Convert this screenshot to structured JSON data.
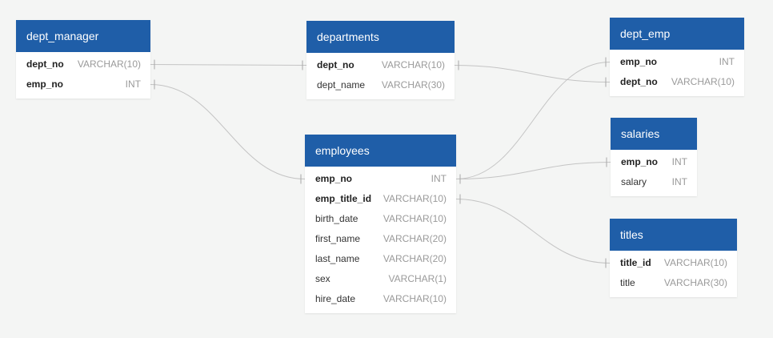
{
  "tables": [
    {
      "id": "dept_manager",
      "name": "dept_manager",
      "columns": [
        {
          "name": "dept_no",
          "type": "VARCHAR(10)",
          "key": true
        },
        {
          "name": "emp_no",
          "type": "INT",
          "key": true
        }
      ]
    },
    {
      "id": "departments",
      "name": "departments",
      "columns": [
        {
          "name": "dept_no",
          "type": "VARCHAR(10)",
          "key": true
        },
        {
          "name": "dept_name",
          "type": "VARCHAR(30)",
          "key": false
        }
      ]
    },
    {
      "id": "dept_emp",
      "name": "dept_emp",
      "columns": [
        {
          "name": "emp_no",
          "type": "INT",
          "key": true
        },
        {
          "name": "dept_no",
          "type": "VARCHAR(10)",
          "key": true
        }
      ]
    },
    {
      "id": "employees",
      "name": "employees",
      "columns": [
        {
          "name": "emp_no",
          "type": "INT",
          "key": true
        },
        {
          "name": "emp_title_id",
          "type": "VARCHAR(10)",
          "key": true
        },
        {
          "name": "birth_date",
          "type": "VARCHAR(10)",
          "key": false
        },
        {
          "name": "first_name",
          "type": "VARCHAR(20)",
          "key": false
        },
        {
          "name": "last_name",
          "type": "VARCHAR(20)",
          "key": false
        },
        {
          "name": "sex",
          "type": "VARCHAR(1)",
          "key": false
        },
        {
          "name": "hire_date",
          "type": "VARCHAR(10)",
          "key": false
        }
      ]
    },
    {
      "id": "salaries",
      "name": "salaries",
      "columns": [
        {
          "name": "emp_no",
          "type": "INT",
          "key": true
        },
        {
          "name": "salary",
          "type": "INT",
          "key": false
        }
      ]
    },
    {
      "id": "titles",
      "name": "titles",
      "columns": [
        {
          "name": "title_id",
          "type": "VARCHAR(10)",
          "key": true
        },
        {
          "name": "title",
          "type": "VARCHAR(30)",
          "key": false
        }
      ]
    }
  ],
  "relationships": [
    {
      "from": "dept_manager.dept_no",
      "to": "departments.dept_no"
    },
    {
      "from": "dept_manager.emp_no",
      "to": "employees.emp_no"
    },
    {
      "from": "departments.dept_no",
      "to": "dept_emp.dept_no"
    },
    {
      "from": "employees.emp_no",
      "to": "dept_emp.emp_no"
    },
    {
      "from": "employees.emp_no",
      "to": "salaries.emp_no"
    },
    {
      "from": "employees.emp_title_id",
      "to": "titles.title_id"
    }
  ],
  "colors": {
    "header": "#1f5ea8",
    "background": "#f4f5f4",
    "link": "#c4c4c4"
  }
}
